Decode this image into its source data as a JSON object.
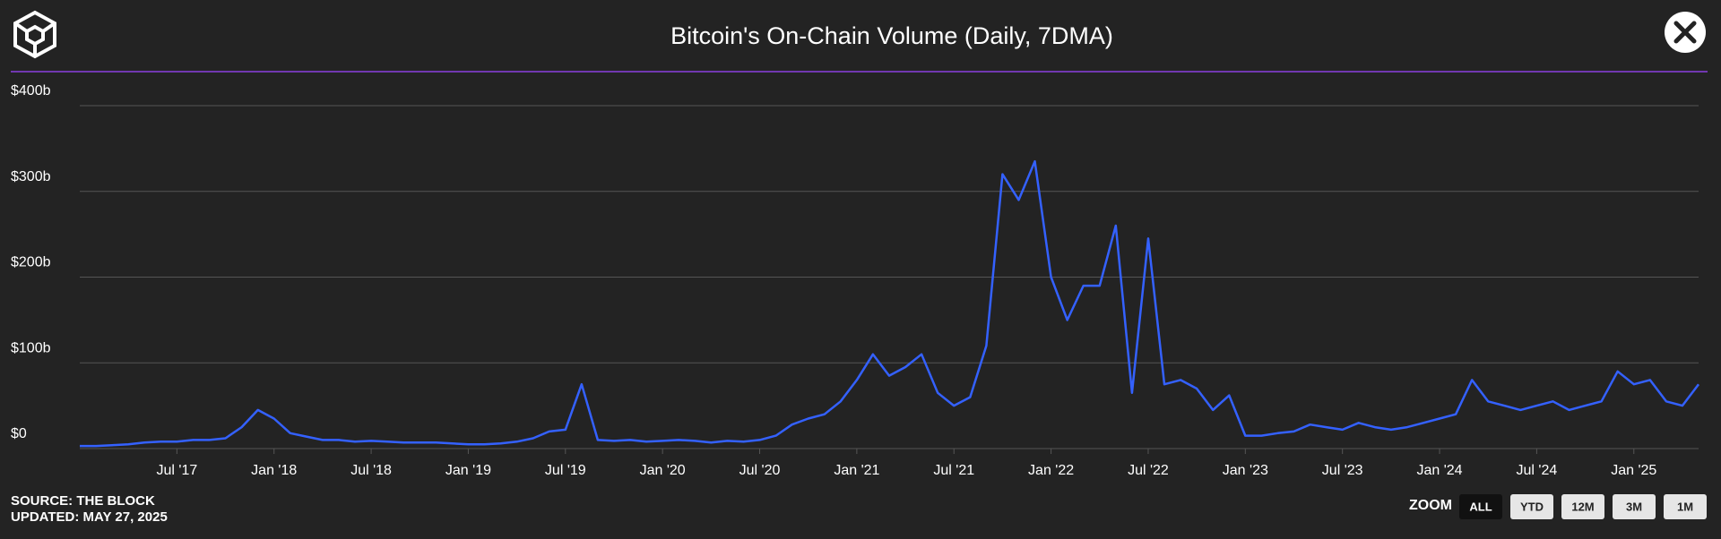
{
  "chart_data": {
    "type": "line",
    "title": "Bitcoin's On-Chain Volume (Daily, 7DMA)",
    "x": [
      "2017-01",
      "2017-02",
      "2017-03",
      "2017-04",
      "2017-05",
      "2017-06",
      "2017-07",
      "2017-08",
      "2017-09",
      "2017-10",
      "2017-11",
      "2017-12",
      "2018-01",
      "2018-02",
      "2018-03",
      "2018-04",
      "2018-05",
      "2018-06",
      "2018-07",
      "2018-08",
      "2018-09",
      "2018-10",
      "2018-11",
      "2018-12",
      "2019-01",
      "2019-02",
      "2019-03",
      "2019-04",
      "2019-05",
      "2019-06",
      "2019-07",
      "2019-08",
      "2019-09",
      "2019-10",
      "2019-11",
      "2019-12",
      "2020-01",
      "2020-02",
      "2020-03",
      "2020-04",
      "2020-05",
      "2020-06",
      "2020-07",
      "2020-08",
      "2020-09",
      "2020-10",
      "2020-11",
      "2020-12",
      "2021-01",
      "2021-02",
      "2021-03",
      "2021-04",
      "2021-05",
      "2021-06",
      "2021-07",
      "2021-08",
      "2021-09",
      "2021-10",
      "2021-11",
      "2021-12",
      "2022-01",
      "2022-02",
      "2022-03",
      "2022-04",
      "2022-05",
      "2022-06",
      "2022-07",
      "2022-08",
      "2022-09",
      "2022-10",
      "2022-11",
      "2022-12",
      "2023-01",
      "2023-02",
      "2023-03",
      "2023-04",
      "2023-05",
      "2023-06",
      "2023-07",
      "2023-08",
      "2023-09",
      "2023-10",
      "2023-11",
      "2023-12",
      "2024-01",
      "2024-02",
      "2024-03",
      "2024-04",
      "2024-05",
      "2024-06",
      "2024-07",
      "2024-08",
      "2024-09",
      "2024-10",
      "2024-11",
      "2024-12",
      "2025-01",
      "2025-02",
      "2025-03",
      "2025-04",
      "2025-05"
    ],
    "series": [
      {
        "color": "#3461ff",
        "values": [
          3,
          3,
          4,
          5,
          7,
          8,
          8,
          10,
          10,
          12,
          25,
          45,
          35,
          18,
          14,
          10,
          10,
          8,
          9,
          8,
          7,
          7,
          7,
          6,
          5,
          5,
          6,
          8,
          12,
          20,
          22,
          75,
          10,
          9,
          10,
          8,
          9,
          10,
          9,
          7,
          9,
          8,
          10,
          15,
          28,
          35,
          40,
          55,
          80,
          110,
          85,
          95,
          110,
          65,
          50,
          60,
          120,
          320,
          290,
          335,
          200,
          150,
          190,
          190,
          260,
          65,
          245,
          75,
          80,
          70,
          45,
          62,
          15,
          15,
          18,
          20,
          28,
          25,
          22,
          30,
          25,
          22,
          25,
          30,
          35,
          40,
          80,
          55,
          50,
          45,
          50,
          55,
          45,
          50,
          55,
          90,
          75,
          80,
          55,
          50,
          75
        ]
      }
    ],
    "ylim": [
      0,
      400
    ],
    "yticks": [
      {
        "value": 0,
        "label": "$0"
      },
      {
        "value": 100,
        "label": "$100b"
      },
      {
        "value": 200,
        "label": "$200b"
      },
      {
        "value": 300,
        "label": "$300b"
      },
      {
        "value": 400,
        "label": "$400b"
      }
    ],
    "xticks": [
      {
        "value": "2017-07",
        "label": "Jul '17"
      },
      {
        "value": "2018-01",
        "label": "Jan '18"
      },
      {
        "value": "2018-07",
        "label": "Jul '18"
      },
      {
        "value": "2019-01",
        "label": "Jan '19"
      },
      {
        "value": "2019-07",
        "label": "Jul '19"
      },
      {
        "value": "2020-01",
        "label": "Jan '20"
      },
      {
        "value": "2020-07",
        "label": "Jul '20"
      },
      {
        "value": "2021-01",
        "label": "Jan '21"
      },
      {
        "value": "2021-07",
        "label": "Jul '21"
      },
      {
        "value": "2022-01",
        "label": "Jan '22"
      },
      {
        "value": "2022-07",
        "label": "Jul '22"
      },
      {
        "value": "2023-01",
        "label": "Jan '23"
      },
      {
        "value": "2023-07",
        "label": "Jul '23"
      },
      {
        "value": "2024-01",
        "label": "Jan '24"
      },
      {
        "value": "2024-07",
        "label": "Jul '24"
      },
      {
        "value": "2025-01",
        "label": "Jan '25"
      }
    ],
    "grid": true
  },
  "footer": {
    "source": "SOURCE: THE BLOCK",
    "updated": "UPDATED: MAY 27, 2025"
  },
  "zoom": {
    "label": "ZOOM",
    "buttons": [
      "ALL",
      "YTD",
      "12M",
      "3M",
      "1M"
    ]
  }
}
